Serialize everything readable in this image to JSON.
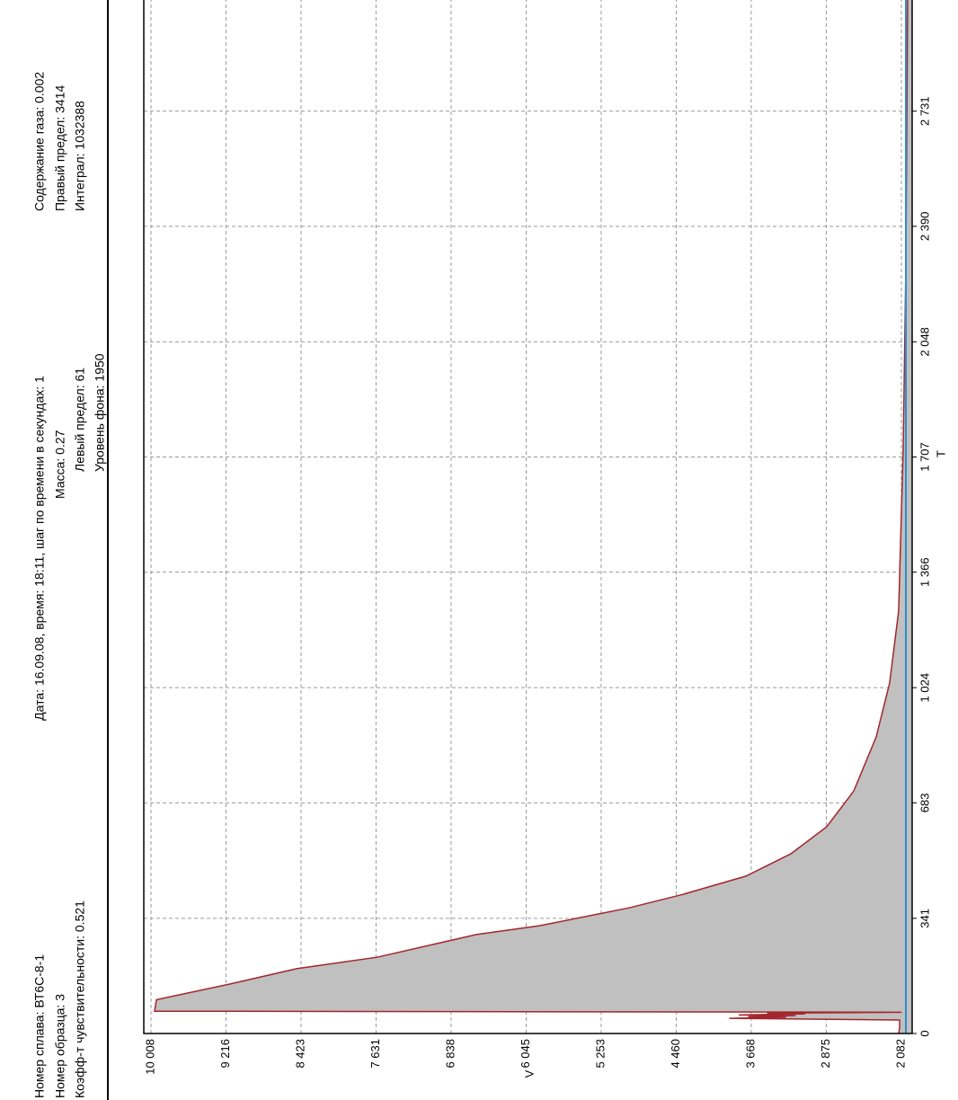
{
  "header": {
    "left": [
      "Номер сплава: ВТ6С-8-1",
      "Номер образца: 3",
      "Коэфф-т чувствительности: 0.521"
    ],
    "center_title": "Дата: 16.09.08, время: 18:11, шаг по времени в секундах: 1",
    "center": [
      "Масса: 0.27",
      "Левый предел: 61",
      "Уровень фона: 1950"
    ],
    "right": [
      "Содержание газа: 0.002",
      "Правый предел: 3414",
      "Интеграл: 1032388"
    ]
  },
  "chart_data": {
    "type": "area",
    "xlabel": "T",
    "ylabel": "V",
    "line_color": "#a3262c",
    "fill_color": "#c0c0c0",
    "grid": true,
    "x": [
      0,
      20,
      40,
      45,
      48,
      50,
      53,
      55,
      58,
      60,
      62,
      63,
      66,
      100,
      146,
      192,
      226,
      293,
      319,
      372,
      412,
      466,
      532,
      612,
      718,
      878,
      1038,
      1251,
      1730,
      2262,
      3060,
      3414
    ],
    "values": [
      2110,
      2100,
      2100,
      3900,
      3300,
      3700,
      3200,
      3800,
      3100,
      3500,
      2600,
      2080,
      9970,
      9950,
      9182,
      8470,
      7616,
      6572,
      5907,
      4958,
      4389,
      3724,
      3250,
      2871,
      2585,
      2348,
      2206,
      2111,
      2063,
      2035,
      2016,
      2012
    ],
    "xlim": [
      0,
      3414
    ],
    "ylim": [
      1968,
      10084
    ],
    "xticks": [
      0,
      {
        "value": 341,
        "label": "341"
      },
      {
        "value": 683,
        "label": "683"
      },
      {
        "value": 1024,
        "label": "1 024"
      },
      {
        "value": 1366,
        "label": "1 366"
      },
      {
        "value": 1707,
        "label": "1 707"
      },
      {
        "value": 2048,
        "label": "2 048"
      },
      {
        "value": 2390,
        "label": "2 390"
      },
      {
        "value": 2731,
        "label": "2 731"
      }
    ],
    "yticks": [
      {
        "value": 10008,
        "label": "10 008"
      },
      {
        "value": 9216,
        "label": "9 216"
      },
      {
        "value": 8423,
        "label": "8 423"
      },
      {
        "value": 7631,
        "label": "7 631"
      },
      {
        "value": 6838,
        "label": "6 838"
      },
      {
        "value": 6045,
        "label": "6 045"
      },
      {
        "value": 5253,
        "label": "5 253"
      },
      {
        "value": 4460,
        "label": "4 460"
      },
      {
        "value": 3668,
        "label": "3 668"
      },
      {
        "value": 2875,
        "label": "2 875"
      },
      {
        "value": 2082,
        "label": "2 082"
      }
    ]
  }
}
